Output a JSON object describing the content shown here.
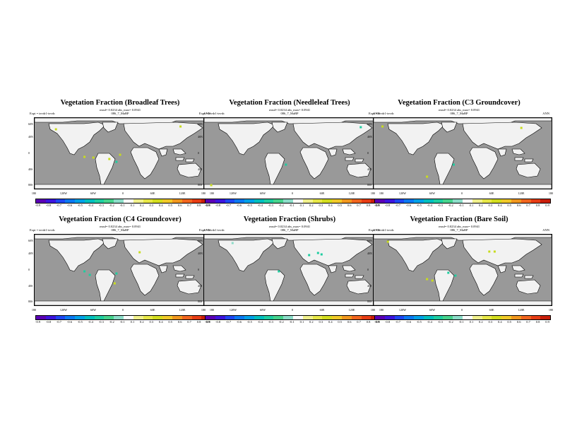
{
  "meta": {
    "rmsd": "rmsd= 0.0234 abs_max= 0.0941",
    "subtitle": "086_7_MaBP",
    "season": "ANN"
  },
  "lat_labels": [
    "60N",
    "40N",
    "0",
    "40S",
    "80S"
  ],
  "lon_labels": [
    "180",
    "120W",
    "60W",
    "0",
    "60E",
    "120E",
    "180"
  ],
  "colorbar": {
    "labels": [
      "-0.9",
      "-0.8",
      "-0.7",
      "-0.6",
      "-0.5",
      "-0.4",
      "-0.3",
      "-0.2",
      "-0.1",
      "0.1",
      "0.2",
      "0.3",
      "0.4",
      "0.5",
      "0.6",
      "0.7",
      "0.8",
      "0.9"
    ],
    "colors": [
      "#5a00b4",
      "#3c14dc",
      "#1e46f0",
      "#0a78f0",
      "#00a0e6",
      "#00bebe",
      "#1ecda0",
      "#46d28c",
      "#8cdcc8",
      "#ffffff",
      "#f0f08c",
      "#e6e646",
      "#d2dc1e",
      "#f0c828",
      "#f0961e",
      "#f0641e",
      "#e63c14",
      "#c81e0a"
    ]
  },
  "panels": [
    {
      "title": "Vegetation Fraction (Broadleaf Trees)",
      "expt": "Expt = tevdr1-tevdc",
      "dots": [
        [
          0.12,
          0.16,
          "#c8dc1e"
        ],
        [
          0.82,
          0.12,
          "#c8dc1e"
        ],
        [
          0.96,
          0.17,
          "#c8dc1e"
        ],
        [
          0.28,
          0.55,
          "#c8dc1e"
        ],
        [
          0.33,
          0.56,
          "#c8dc1e"
        ],
        [
          0.42,
          0.58,
          "#c8dc1e"
        ],
        [
          0.48,
          0.52,
          "#c8dc1e"
        ],
        [
          0.46,
          0.62,
          "#1ecda0"
        ]
      ]
    },
    {
      "title": "Vegetation Fraction (Needleleaf Trees)",
      "expt": "Expt = tevdr1-tevdc",
      "dots": [
        [
          0.88,
          0.13,
          "#1ecda0"
        ],
        [
          0.46,
          0.66,
          "#1ecda0"
        ],
        [
          0.04,
          0.95,
          "#c8dc1e"
        ]
      ]
    },
    {
      "title": "Vegetation Fraction (C3 Groundcover)",
      "expt": "Expt = tevdr1-tevdc",
      "dots": [
        [
          0.05,
          0.12,
          "#c8dc1e"
        ],
        [
          0.83,
          0.14,
          "#c8dc1e"
        ],
        [
          0.45,
          0.66,
          "#1ecda0"
        ],
        [
          0.3,
          0.83,
          "#c8dc1e"
        ]
      ]
    },
    {
      "title": "Vegetation Fraction (C4 Groundcover)",
      "expt": "Expt = tevdr1-tevdc",
      "dots": [
        [
          0.59,
          0.25,
          "#c8dc1e"
        ],
        [
          0.28,
          0.52,
          "#1ecda0"
        ],
        [
          0.31,
          0.57,
          "#1ecda0"
        ],
        [
          0.46,
          0.55,
          "#1ecda0"
        ],
        [
          0.45,
          0.69,
          "#c8dc1e"
        ]
      ]
    },
    {
      "title": "Vegetation Fraction (Shrubs)",
      "expt": "Expt = tevdr1-tevdc",
      "dots": [
        [
          0.64,
          0.26,
          "#1ecda0"
        ],
        [
          0.66,
          0.28,
          "#1ecda0"
        ],
        [
          0.59,
          0.29,
          "#1ecda0"
        ],
        [
          0.42,
          0.52,
          "#1ecda0"
        ],
        [
          0.16,
          0.12,
          "#8cdcc8"
        ]
      ]
    },
    {
      "title": "Vegetation Fraction (Bare Soil)",
      "expt": "Expt = tevdr1-tevdc",
      "dots": [
        [
          0.65,
          0.24,
          "#c8dc1e"
        ],
        [
          0.68,
          0.24,
          "#c8dc1e"
        ],
        [
          0.42,
          0.54,
          "#1ecda0"
        ],
        [
          0.46,
          0.58,
          "#1ecda0"
        ],
        [
          0.3,
          0.63,
          "#c8dc1e"
        ],
        [
          0.33,
          0.65,
          "#c8dc1e"
        ],
        [
          0.08,
          0.1,
          "#c8dc1e"
        ]
      ]
    }
  ]
}
